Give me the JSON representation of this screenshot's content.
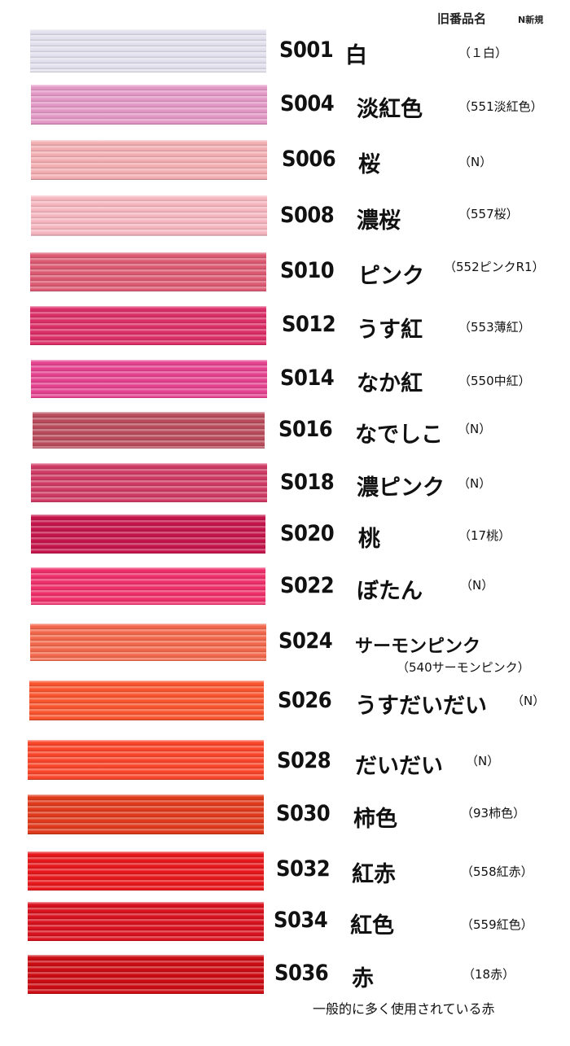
{
  "header": {
    "old_label": "旧番品名",
    "new_label": "N新規"
  },
  "items": [
    {
      "code": "S001",
      "name": "白",
      "old": "（１白）",
      "color": "#e2e0ec"
    },
    {
      "code": "S004",
      "name": "淡紅色",
      "old": "（551淡紅色）",
      "color": "#e398c6"
    },
    {
      "code": "S006",
      "name": "桜",
      "old": "（N）",
      "color": "#f2aeb2"
    },
    {
      "code": "S008",
      "name": "濃桜",
      "old": "（557桜）",
      "color": "#f6b6c0"
    },
    {
      "code": "S010",
      "name": "ピンク",
      "old": "（552ピンクR1）",
      "color": "#dc5a72"
    },
    {
      "code": "S012",
      "name": "うす紅",
      "old": "（553薄紅）",
      "color": "#db2f68"
    },
    {
      "code": "S014",
      "name": "なか紅",
      "old": "（550中紅）",
      "color": "#e54290"
    },
    {
      "code": "S016",
      "name": "なでしこ",
      "old": "（N）",
      "color": "#b94c5c"
    },
    {
      "code": "S018",
      "name": "濃ピンク",
      "old": "（N）",
      "color": "#cf3b65"
    },
    {
      "code": "S020",
      "name": "桃",
      "old": "（17桃）",
      "color": "#c5164c"
    },
    {
      "code": "S022",
      "name": "ぼたん",
      "old": "（N）",
      "color": "#ef2f6a"
    },
    {
      "code": "S024",
      "name": "サーモンピンク",
      "old": "（540サーモンピンク）",
      "color": "#f2684c"
    },
    {
      "code": "S026",
      "name": "うすだいだい",
      "old": "（N）",
      "color": "#f9552e"
    },
    {
      "code": "S028",
      "name": "だいだい",
      "old": "（N）",
      "color": "#f9452a"
    },
    {
      "code": "S030",
      "name": "柿色",
      "old": "（93柿色）",
      "color": "#e03a1c"
    },
    {
      "code": "S032",
      "name": "紅赤",
      "old": "（558紅赤）",
      "color": "#e7181c"
    },
    {
      "code": "S034",
      "name": "紅色",
      "old": "（559紅色）",
      "color": "#d8121e"
    },
    {
      "code": "S036",
      "name": "赤",
      "old": "（18赤）",
      "color": "#cc0c14"
    }
  ],
  "note": "一般的に多く使用されている赤"
}
